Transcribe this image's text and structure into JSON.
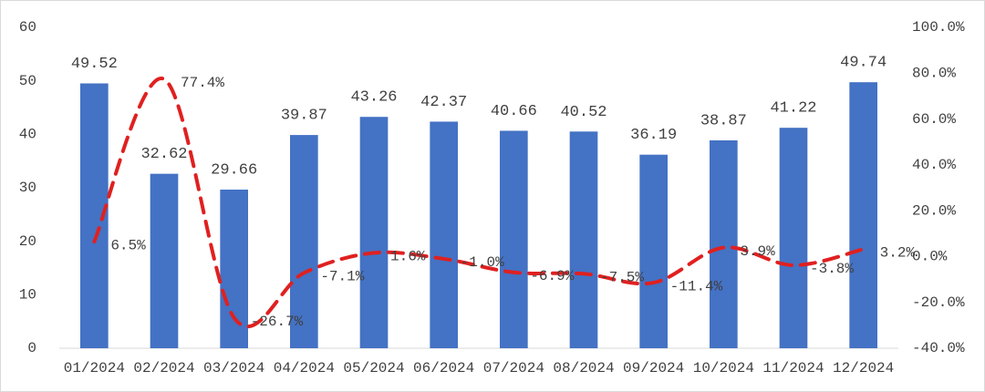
{
  "chart_data": {
    "type": "bar",
    "categories": [
      "01/2024",
      "02/2024",
      "03/2024",
      "04/2024",
      "05/2024",
      "06/2024",
      "07/2024",
      "08/2024",
      "09/2024",
      "10/2024",
      "11/2024",
      "12/2024"
    ],
    "series": [
      {
        "type": "bar",
        "color": "#4472c4",
        "values": [
          49.52,
          32.62,
          29.66,
          39.87,
          43.26,
          42.37,
          40.66,
          40.52,
          36.19,
          38.87,
          41.22,
          49.74
        ]
      },
      {
        "type": "line",
        "axis": "y2",
        "color": "#e02020",
        "dashed": true,
        "values": [
          6.5,
          77.4,
          -26.7,
          -7.1,
          1.6,
          -1.0,
          -6.9,
          -7.5,
          -11.4,
          3.9,
          -3.8,
          3.2
        ],
        "value_labels": [
          "6.5%",
          "77.4%",
          "-26.7%",
          "-7.1%",
          "1.6%",
          "-1.0%",
          "-6.9%",
          "-7.5%",
          "-11.4%",
          "3.9%",
          "-3.8%",
          "3.2%"
        ]
      }
    ],
    "ylim": [
      0,
      60
    ],
    "yticks": [
      0,
      10,
      20,
      30,
      40,
      50,
      60
    ],
    "y2lim": [
      -40,
      100
    ],
    "y2ticks": [
      {
        "value": -40,
        "label": "-40.0%"
      },
      {
        "value": -20,
        "label": "-20.0%"
      },
      {
        "value": 0,
        "label": "0.0%"
      },
      {
        "value": 20,
        "label": "20.0%"
      },
      {
        "value": 40,
        "label": "40.0%"
      },
      {
        "value": 60,
        "label": "60.0%"
      },
      {
        "value": 80,
        "label": "80.0%"
      },
      {
        "value": 100,
        "label": "100.0%"
      }
    ],
    "grid": false
  }
}
